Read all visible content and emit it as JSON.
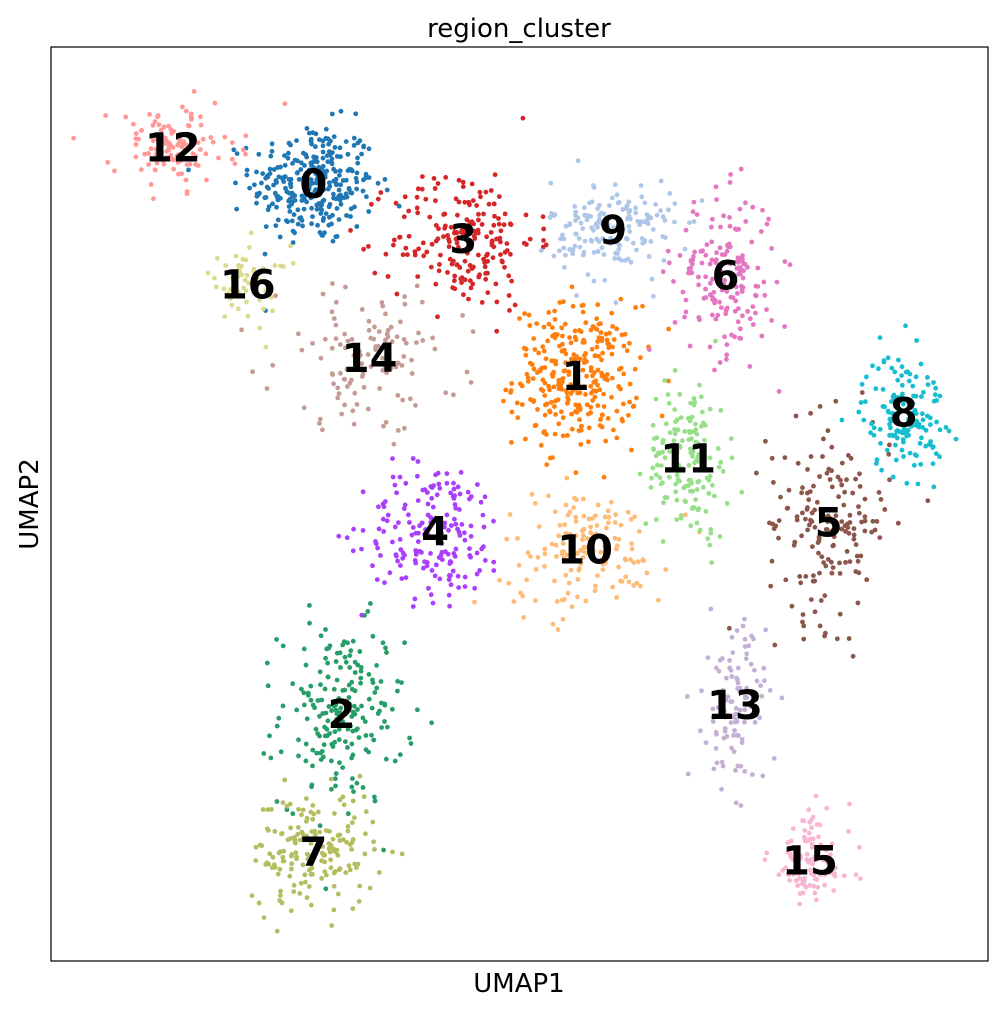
{
  "chart_data": {
    "type": "scatter",
    "title": "region_cluster",
    "xlabel": "UMAP1",
    "ylabel": "UMAP2",
    "xlim": [
      0,
      100
    ],
    "ylim": [
      0,
      100
    ],
    "grid": false,
    "legend": "on data",
    "ticks": "hidden",
    "clusters": [
      {
        "label": "0",
        "color": "#1f77b4",
        "centroid": [
          28,
          85
        ],
        "n": 300,
        "spread": [
          6,
          6
        ]
      },
      {
        "label": "1",
        "color": "#ff7f0e",
        "centroid": [
          56,
          64
        ],
        "n": 300,
        "spread": [
          6,
          7
        ]
      },
      {
        "label": "2",
        "color": "#279e68",
        "centroid": [
          31,
          27
        ],
        "n": 200,
        "spread": [
          6,
          9
        ]
      },
      {
        "label": "3",
        "color": "#d62728",
        "centroid": [
          44,
          79
        ],
        "n": 200,
        "spread": [
          7,
          7
        ]
      },
      {
        "label": "4",
        "color": "#aa40fc",
        "centroid": [
          41,
          47
        ],
        "n": 180,
        "spread": [
          7,
          7
        ]
      },
      {
        "label": "5",
        "color": "#8c564b",
        "centroid": [
          83,
          48
        ],
        "n": 170,
        "spread": [
          6,
          10
        ]
      },
      {
        "label": "6",
        "color": "#e377c2",
        "centroid": [
          72,
          75
        ],
        "n": 170,
        "spread": [
          5,
          8
        ]
      },
      {
        "label": "7",
        "color": "#b5bd61",
        "centroid": [
          28,
          12
        ],
        "n": 170,
        "spread": [
          6,
          6
        ]
      },
      {
        "label": "8",
        "color": "#17becf",
        "centroid": [
          91,
          60
        ],
        "n": 150,
        "spread": [
          4,
          6
        ]
      },
      {
        "label": "9",
        "color": "#aec7e8",
        "centroid": [
          60,
          80
        ],
        "n": 160,
        "spread": [
          6,
          5
        ]
      },
      {
        "label": "10",
        "color": "#ffbb78",
        "centroid": [
          57,
          45
        ],
        "n": 150,
        "spread": [
          8,
          6
        ]
      },
      {
        "label": "11",
        "color": "#98df8a",
        "centroid": [
          68,
          55
        ],
        "n": 150,
        "spread": [
          4,
          8
        ]
      },
      {
        "label": "12",
        "color": "#ff9896",
        "centroid": [
          13,
          89
        ],
        "n": 120,
        "spread": [
          6,
          4
        ]
      },
      {
        "label": "13",
        "color": "#c5b0d5",
        "centroid": [
          73,
          28
        ],
        "n": 110,
        "spread": [
          3,
          8
        ]
      },
      {
        "label": "14",
        "color": "#c49c94",
        "centroid": [
          34,
          66
        ],
        "n": 120,
        "spread": [
          9,
          7
        ]
      },
      {
        "label": "15",
        "color": "#f7b6d2",
        "centroid": [
          81,
          11
        ],
        "n": 100,
        "spread": [
          4,
          5
        ]
      },
      {
        "label": "16",
        "color": "#dbdb8d",
        "centroid": [
          21,
          74
        ],
        "n": 50,
        "spread": [
          4,
          4
        ]
      }
    ]
  }
}
